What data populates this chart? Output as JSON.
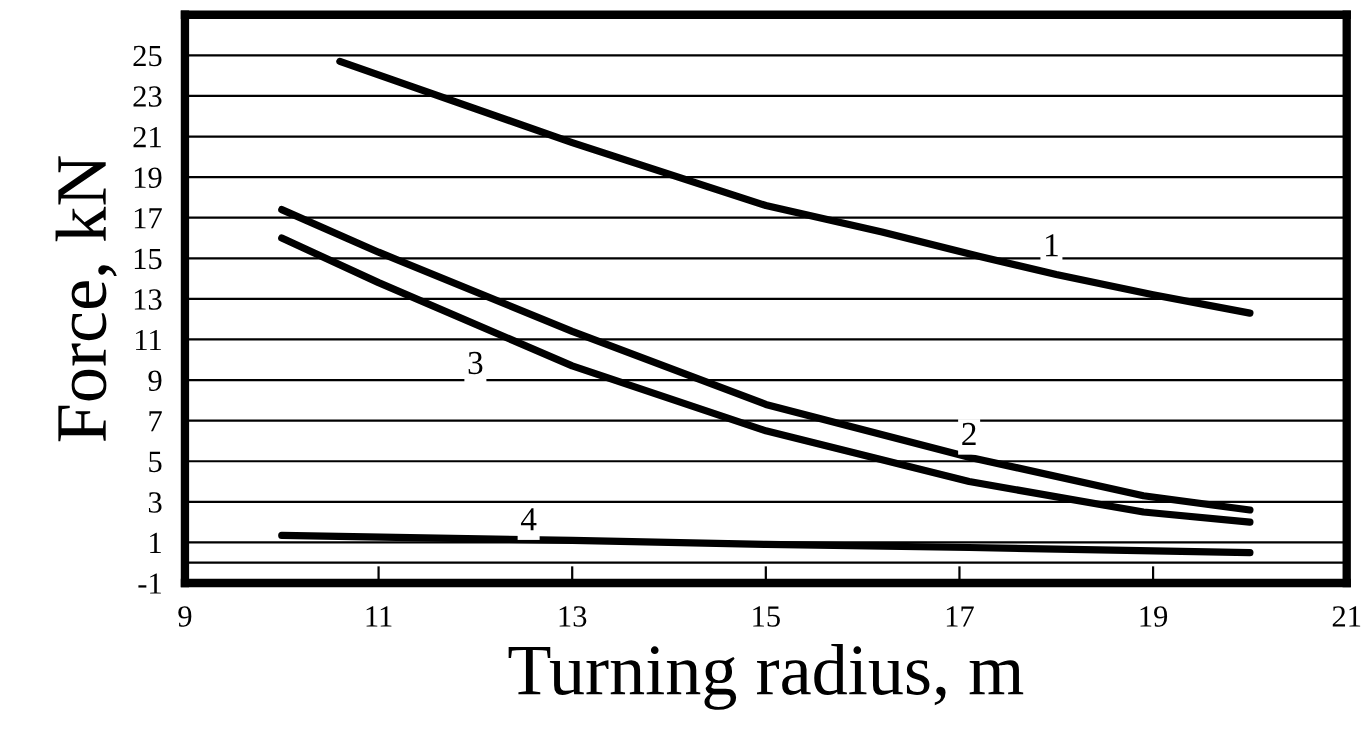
{
  "chart_data": {
    "type": "line",
    "xlabel": "Turning radius, m",
    "ylabel": "Force, kN",
    "xlim": [
      9,
      21
    ],
    "xticks": [
      9,
      11,
      13,
      15,
      17,
      19,
      21
    ],
    "ylim": [
      -1,
      27
    ],
    "yticks": [
      -1,
      1,
      3,
      5,
      7,
      9,
      11,
      13,
      15,
      17,
      19,
      21,
      23,
      25
    ],
    "grid": "y",
    "marker": "none",
    "line_style": "solid",
    "ref_lines": [
      {
        "axis": "y",
        "value": 0,
        "color": "#000000"
      }
    ],
    "series": [
      {
        "color": "#000000",
        "x": [
          10.6,
          13.0,
          15.0,
          16.2,
          17.2,
          18.0,
          19.0,
          20.0
        ],
        "values": [
          24.7,
          20.7,
          17.6,
          16.3,
          15.1,
          14.2,
          13.2,
          12.3
        ]
      },
      {
        "color": "#000000",
        "x": [
          10.0,
          11.0,
          13.0,
          15.0,
          17.1,
          18.9,
          20.0
        ],
        "values": [
          17.4,
          15.3,
          11.4,
          7.8,
          5.2,
          3.3,
          2.6
        ]
      },
      {
        "color": "#000000",
        "x": [
          10.0,
          11.0,
          13.0,
          15.0,
          17.1,
          18.9,
          20.0
        ],
        "values": [
          16.0,
          13.8,
          9.7,
          6.5,
          4.0,
          2.5,
          2.0
        ]
      },
      {
        "color": "#000000",
        "x": [
          10.0,
          13.0,
          15.0,
          17.1,
          20.0
        ],
        "values": [
          1.35,
          1.1,
          0.9,
          0.75,
          0.5
        ]
      }
    ],
    "annotations": [
      {
        "text": "1",
        "x": 17.95,
        "y": 15.5
      },
      {
        "text": "2",
        "x": 17.1,
        "y": 6.2
      },
      {
        "text": "3",
        "x": 12.0,
        "y": 9.7
      },
      {
        "text": "4",
        "x": 12.55,
        "y": 2.0
      }
    ]
  }
}
